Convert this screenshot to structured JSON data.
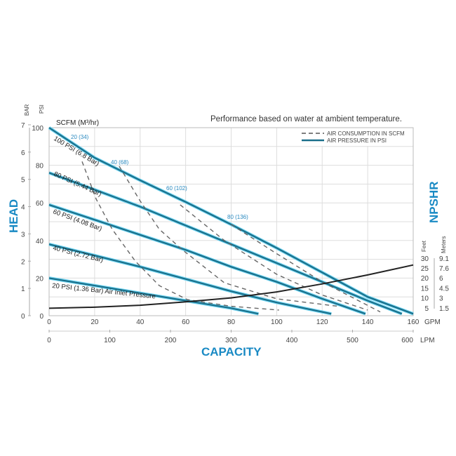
{
  "chart_data": {
    "type": "line",
    "note": "Performance based on water at ambient temperature.",
    "xlabel": "CAPACITY",
    "ylabel": "HEAD",
    "y2label": "NPSHR",
    "x_unit_gpm": "GPM",
    "x_unit_lpm": "LPM",
    "y_unit_bar": "BAR",
    "y_unit_psi": "PSI",
    "y2_unit_feet": "Feet",
    "y2_unit_meters": "Meters",
    "scfm_header": "SCFM (M³/hr)",
    "xlim_gpm": [
      0,
      160
    ],
    "ylim_psi": [
      0,
      100
    ],
    "grid": true,
    "legend_position": "top-right",
    "legend": [
      {
        "label": "AIR CONSUMPTION IN SCFM",
        "style": "dashed",
        "color": "#555555"
      },
      {
        "label": "AIR PRESSURE IN PSI",
        "style": "solid",
        "color": "#1a6f8a"
      }
    ],
    "ticks": {
      "gpm": [
        "0",
        "20",
        "40",
        "60",
        "80",
        "100",
        "120",
        "140",
        "160"
      ],
      "lpm": [
        "0",
        "100",
        "200",
        "300",
        "400",
        "500",
        "600"
      ],
      "psi": [
        "0",
        "20",
        "40",
        "60",
        "80",
        "100"
      ],
      "bar": [
        "0",
        "1",
        "2",
        "3",
        "4",
        "5",
        "6",
        "7"
      ],
      "feet": [
        "5",
        "10",
        "15",
        "20",
        "25",
        "30"
      ],
      "meters": [
        "1.5",
        "3",
        "4.5",
        "6",
        "7.6",
        "9.1"
      ]
    },
    "pressure_series": [
      {
        "name": "100 PSI (6.8 Bar)",
        "points": [
          [
            0,
            100
          ],
          [
            20,
            84
          ],
          [
            40,
            72
          ],
          [
            60,
            60.5
          ],
          [
            80,
            48.5
          ],
          [
            100,
            36
          ],
          [
            120,
            23
          ],
          [
            140,
            10
          ],
          [
            160,
            1
          ]
        ]
      },
      {
        "name": "80 PSI (5.44 Bar)",
        "points": [
          [
            0,
            76
          ],
          [
            20,
            67
          ],
          [
            40,
            58
          ],
          [
            60,
            48
          ],
          [
            80,
            38
          ],
          [
            100,
            28
          ],
          [
            120,
            18
          ],
          [
            140,
            8
          ],
          [
            155,
            1
          ]
        ]
      },
      {
        "name": "60 PSI (4.08 Bar)",
        "points": [
          [
            0,
            59
          ],
          [
            20,
            51
          ],
          [
            40,
            43
          ],
          [
            60,
            35
          ],
          [
            80,
            26
          ],
          [
            100,
            18
          ],
          [
            120,
            9
          ],
          [
            139,
            1
          ]
        ]
      },
      {
        "name": "40 PSI (2.72 Bar)",
        "points": [
          [
            0,
            38
          ],
          [
            20,
            32
          ],
          [
            40,
            26
          ],
          [
            60,
            19.5
          ],
          [
            80,
            13
          ],
          [
            100,
            7
          ],
          [
            124,
            1
          ]
        ]
      },
      {
        "name": "20 PSI (1.36 Bar) Air Inlet Pressure",
        "points": [
          [
            0,
            20
          ],
          [
            20,
            16
          ],
          [
            40,
            12
          ],
          [
            60,
            8
          ],
          [
            80,
            4
          ],
          [
            92,
            1
          ]
        ]
      }
    ],
    "air_consumption_series": [
      {
        "name": "20 (34)",
        "points": [
          [
            14.5,
            82
          ],
          [
            20.7,
            62
          ],
          [
            27.7,
            46
          ],
          [
            37.9,
            29
          ],
          [
            48.4,
            16
          ],
          [
            60.7,
            8.6
          ],
          [
            80,
            5
          ],
          [
            101,
            3
          ]
        ]
      },
      {
        "name": "40 (68)",
        "points": [
          [
            30.8,
            79.5
          ],
          [
            40,
            61
          ],
          [
            48.4,
            46
          ],
          [
            58.6,
            35
          ],
          [
            77,
            17.5
          ],
          [
            100,
            9
          ],
          [
            127,
            5
          ]
        ]
      },
      {
        "name": "60 (102)",
        "points": [
          [
            57.6,
            59
          ],
          [
            77,
            40
          ],
          [
            100,
            22
          ],
          [
            120,
            11
          ],
          [
            140,
            3
          ]
        ]
      },
      {
        "name": "80 (136)",
        "points": [
          [
            80,
            48.5
          ],
          [
            100,
            33
          ],
          [
            120,
            18
          ],
          [
            145.5,
            2
          ]
        ]
      }
    ],
    "npshr_feet": [
      [
        0,
        4.8
      ],
      [
        20,
        5.3
      ],
      [
        40,
        6.3
      ],
      [
        60,
        8
      ],
      [
        80,
        10
      ],
      [
        100,
        13
      ],
      [
        120,
        17
      ],
      [
        140,
        21.5
      ],
      [
        160,
        26.5
      ]
    ],
    "colors": {
      "pressure": "#1a6f8a",
      "pressure_halo": "#6fd3f0",
      "air": "#666666",
      "npshr": "#222222",
      "title": "#1a8ac4"
    }
  }
}
